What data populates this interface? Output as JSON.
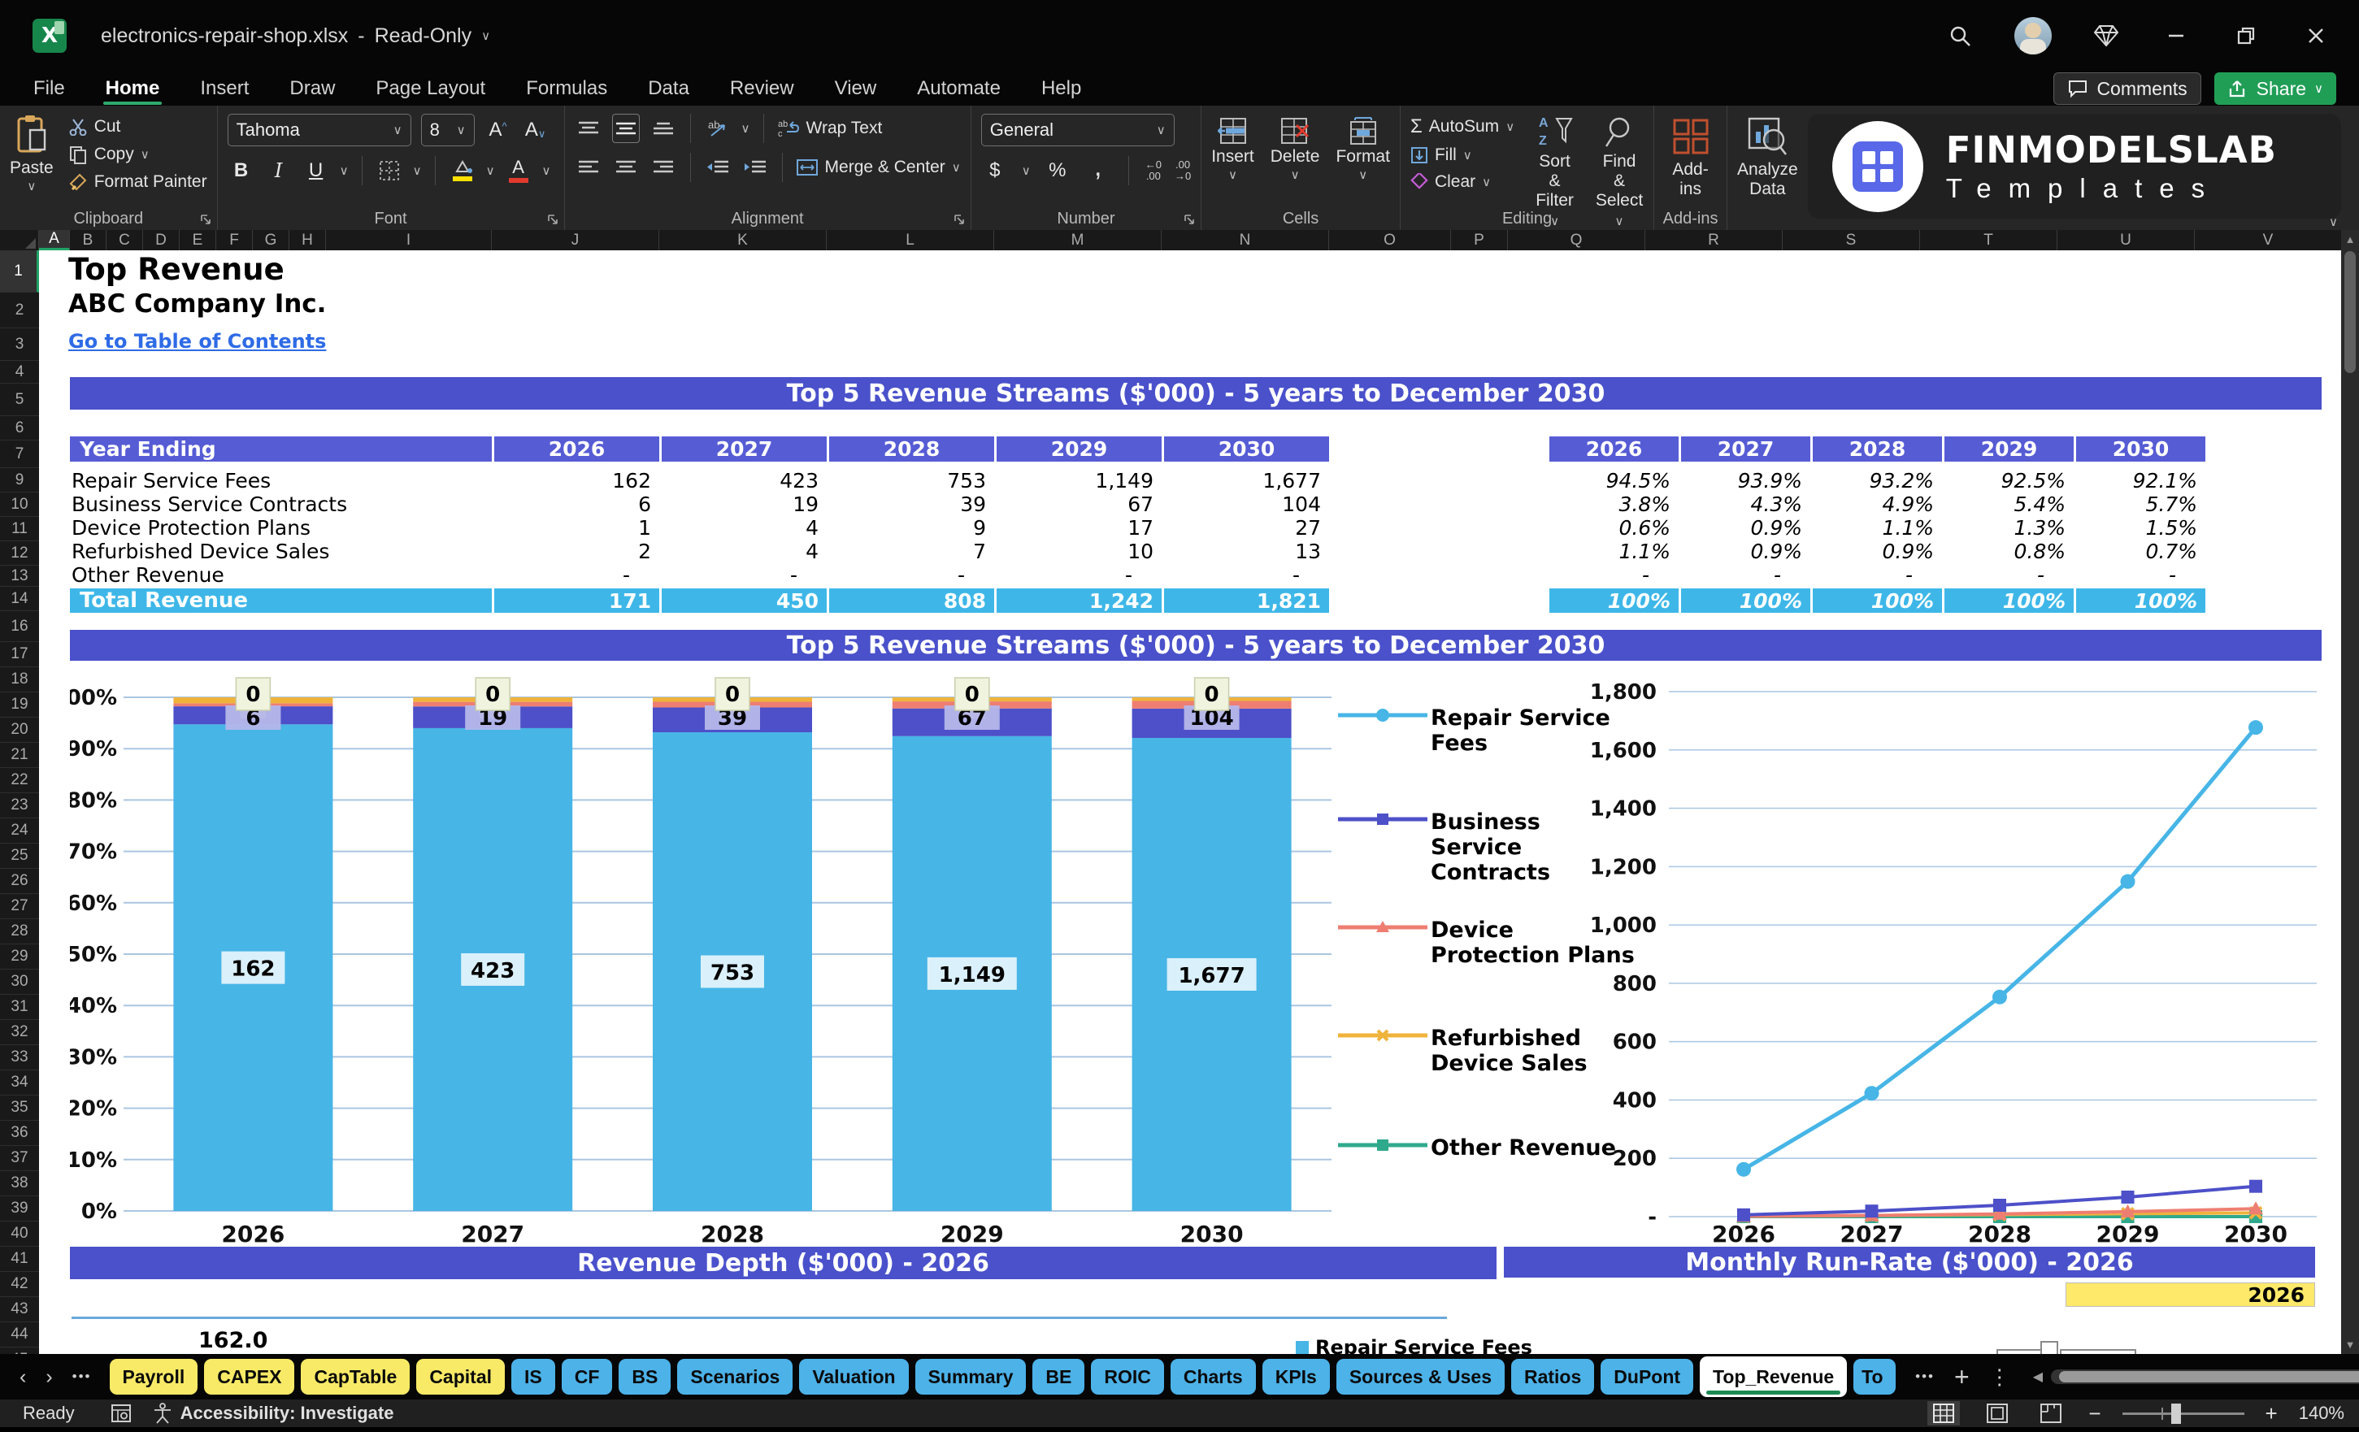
{
  "titlebar": {
    "filename": "electronics-repair-shop.xlsx",
    "separator": "-",
    "mode": "Read-Only"
  },
  "menubar": {
    "tabs": [
      "File",
      "Home",
      "Insert",
      "Draw",
      "Page Layout",
      "Formulas",
      "Data",
      "Review",
      "View",
      "Automate",
      "Help"
    ],
    "active_tab": "Home",
    "comments_label": "Comments",
    "share_label": "Share"
  },
  "ribbon": {
    "clipboard": {
      "label": "Clipboard",
      "paste": "Paste",
      "cut": "Cut",
      "copy": "Copy",
      "format_painter": "Format Painter"
    },
    "font": {
      "label": "Font",
      "font_name": "Tahoma",
      "font_size": "8",
      "bold": "B",
      "italic": "I",
      "underline": "U"
    },
    "alignment": {
      "label": "Alignment",
      "wrap_text": "Wrap Text",
      "merge_center": "Merge & Center"
    },
    "number": {
      "label": "Number",
      "format": "General"
    },
    "cells": {
      "label": "Cells",
      "insert": "Insert",
      "delete": "Delete",
      "format": "Format"
    },
    "editing": {
      "label": "Editing",
      "autosum": "AutoSum",
      "fill": "Fill",
      "clear": "Clear",
      "sort_filter_1": "Sort &",
      "sort_filter_2": "Filter",
      "find_select_1": "Find &",
      "find_select_2": "Select"
    },
    "addins": {
      "label": "Add-ins",
      "addins": "Add-ins",
      "analyze_1": "Analyze",
      "analyze_2": "Data"
    },
    "logo": {
      "line1": "FINMODELSLAB",
      "line2": "Templates"
    }
  },
  "grid": {
    "columns": [
      "A",
      "B",
      "C",
      "D",
      "E",
      "F",
      "G",
      "H",
      "I",
      "J",
      "K",
      "L",
      "M",
      "N",
      "O",
      "P",
      "Q",
      "R",
      "S",
      "T",
      "U",
      "V"
    ],
    "rows": [
      "1",
      "2",
      "3",
      "4",
      "5",
      "6",
      "7",
      "9",
      "10",
      "11",
      "12",
      "13",
      "14",
      "16",
      "17",
      "18",
      "19",
      "20",
      "21",
      "22",
      "23",
      "24",
      "25",
      "26",
      "27",
      "28",
      "29",
      "30",
      "31",
      "32",
      "33",
      "34",
      "35",
      "36",
      "37",
      "38",
      "39",
      "40",
      "41",
      "42",
      "43",
      "44",
      "45"
    ]
  },
  "sheet": {
    "title": "Top Revenue",
    "company": "ABC Company Inc.",
    "toc_link": "Go to Table of Contents",
    "banner_top": "Top 5 Revenue Streams ($'000) - 5 years to December 2030",
    "banner_chart": "Top 5 Revenue Streams ($'000) - 5 years to December 2030",
    "banner_depth": "Revenue Depth ($'000) - 2026",
    "banner_runrate": "Monthly Run-Rate ($'000) - 2026",
    "selected_year": "2026",
    "depth_first_label": "162.0",
    "depth_legend": "Repair Service Fees",
    "values_table": {
      "header": [
        "Year Ending",
        "2026",
        "2027",
        "2028",
        "2029",
        "2030"
      ],
      "rows": [
        {
          "label": "Repair Service Fees",
          "values": [
            "162",
            "423",
            "753",
            "1,149",
            "1,677"
          ]
        },
        {
          "label": "Business Service Contracts",
          "values": [
            "6",
            "19",
            "39",
            "67",
            "104"
          ]
        },
        {
          "label": "Device Protection Plans",
          "values": [
            "1",
            "4",
            "9",
            "17",
            "27"
          ]
        },
        {
          "label": "Refurbished Device Sales",
          "values": [
            "2",
            "4",
            "7",
            "10",
            "13"
          ]
        },
        {
          "label": "Other Revenue",
          "values": [
            "-",
            "-",
            "-",
            "-",
            "-"
          ]
        }
      ],
      "total": {
        "label": "Total Revenue",
        "values": [
          "171",
          "450",
          "808",
          "1,242",
          "1,821"
        ]
      }
    },
    "share_table": {
      "header": [
        "2026",
        "2027",
        "2028",
        "2029",
        "2030"
      ],
      "rows": [
        [
          "94.5%",
          "93.9%",
          "93.2%",
          "92.5%",
          "92.1%"
        ],
        [
          "3.8%",
          "4.3%",
          "4.9%",
          "5.4%",
          "5.7%"
        ],
        [
          "0.6%",
          "0.9%",
          "1.1%",
          "1.3%",
          "1.5%"
        ],
        [
          "1.1%",
          "0.9%",
          "0.9%",
          "0.8%",
          "0.7%"
        ],
        [
          "-",
          "-",
          "-",
          "-",
          "-"
        ]
      ],
      "total": [
        "100%",
        "100%",
        "100%",
        "100%",
        "100%"
      ]
    }
  },
  "chart_data": [
    {
      "type": "bar",
      "variant": "100-percent-stacked-column",
      "title": "Top 5 Revenue Streams ($'000) - 5 years to December 2030",
      "categories": [
        "2026",
        "2027",
        "2028",
        "2029",
        "2030"
      ],
      "series": [
        {
          "name": "Repair Service Fees",
          "color": "#47b5e6",
          "values": [
            162,
            423,
            753,
            1149,
            1677
          ]
        },
        {
          "name": "Business Service Contracts",
          "color": "#4d50c8",
          "values": [
            6,
            19,
            39,
            67,
            104
          ]
        },
        {
          "name": "Device Protection Plans",
          "color": "#ee7e71",
          "values": [
            1,
            4,
            9,
            17,
            27
          ]
        },
        {
          "name": "Refurbished Device Sales",
          "color": "#efb33c",
          "values": [
            2,
            4,
            7,
            10,
            13
          ]
        },
        {
          "name": "Other Revenue",
          "color": "#2fa98c",
          "values": [
            0,
            0,
            0,
            0,
            0
          ]
        }
      ],
      "y_ticks": [
        "100%",
        "90%",
        "80%",
        "70%",
        "60%",
        "50%",
        "40%",
        "30%",
        "20%",
        "10%",
        "0%"
      ],
      "ylim": [
        0,
        1
      ],
      "grid": true,
      "data_labels": {
        "repair": [
          "162",
          "423",
          "753",
          "1,149",
          "1,677"
        ],
        "business": [
          "6",
          "19",
          "39",
          "67",
          "104"
        ],
        "other": [
          "0",
          "0",
          "0",
          "0",
          "0"
        ]
      }
    },
    {
      "type": "line",
      "categories": [
        "2026",
        "2027",
        "2028",
        "2029",
        "2030"
      ],
      "series": [
        {
          "name": "Repair Service Fees",
          "color": "#47b5e6",
          "marker": "circle",
          "values": [
            162,
            423,
            753,
            1149,
            1677
          ]
        },
        {
          "name": "Business Service Contracts",
          "color": "#4d50c8",
          "marker": "square",
          "values": [
            6,
            19,
            39,
            67,
            104
          ]
        },
        {
          "name": "Device Protection Plans",
          "color": "#ee7e71",
          "marker": "triangle",
          "values": [
            1,
            4,
            9,
            17,
            27
          ]
        },
        {
          "name": "Refurbished Device Sales",
          "color": "#efb33c",
          "marker": "x",
          "values": [
            2,
            4,
            7,
            10,
            13
          ]
        },
        {
          "name": "Other Revenue",
          "color": "#2fa98c",
          "marker": "square",
          "values": [
            0,
            0,
            0,
            0,
            0
          ]
        }
      ],
      "y_ticks": [
        "1,800",
        "1,600",
        "1,400",
        "1,200",
        "1,000",
        "800",
        "600",
        "400",
        "200",
        "-"
      ],
      "ylim": [
        0,
        1800
      ],
      "grid": true,
      "legend_position": "left"
    },
    {
      "type": "bar",
      "title": "Revenue Depth ($'000) - 2026",
      "visible_partial": true,
      "data_labels": [
        "162.0"
      ],
      "legend": [
        "Repair Service Fees"
      ]
    }
  ],
  "sheet_tabs": {
    "tabs": [
      {
        "label": "Payroll",
        "color": "yellow"
      },
      {
        "label": "CAPEX",
        "color": "yellow"
      },
      {
        "label": "CapTable",
        "color": "yellow"
      },
      {
        "label": "Capital",
        "color": "yellow"
      },
      {
        "label": "IS",
        "color": "blue"
      },
      {
        "label": "CF",
        "color": "blue"
      },
      {
        "label": "BS",
        "color": "blue"
      },
      {
        "label": "Scenarios",
        "color": "blue"
      },
      {
        "label": "Valuation",
        "color": "blue"
      },
      {
        "label": "Summary",
        "color": "blue"
      },
      {
        "label": "BE",
        "color": "blue"
      },
      {
        "label": "ROIC",
        "color": "blue"
      },
      {
        "label": "Charts",
        "color": "blue"
      },
      {
        "label": "KPIs",
        "color": "blue"
      },
      {
        "label": "Sources & Uses",
        "color": "blue"
      },
      {
        "label": "Ratios",
        "color": "blue"
      },
      {
        "label": "DuPont",
        "color": "blue"
      },
      {
        "label": "Top_Revenue",
        "color": "active"
      },
      {
        "label": "To",
        "color": "blue",
        "clipped": true
      }
    ]
  },
  "statusbar": {
    "ready": "Ready",
    "accessibility": "Accessibility: Investigate",
    "zoom": "140%"
  },
  "colors": {
    "accent_green": "#21a366",
    "banner_purple": "#4a51cb",
    "table_header_purple": "#565cd4",
    "total_row_cyan": "#3eb7e8",
    "link_blue": "#2e6be6",
    "tab_yellow": "#f8ea66",
    "tab_blue": "#4cb2e8",
    "selected_cell_yellow": "#ffe96a",
    "share_button_green": "#219e56"
  }
}
